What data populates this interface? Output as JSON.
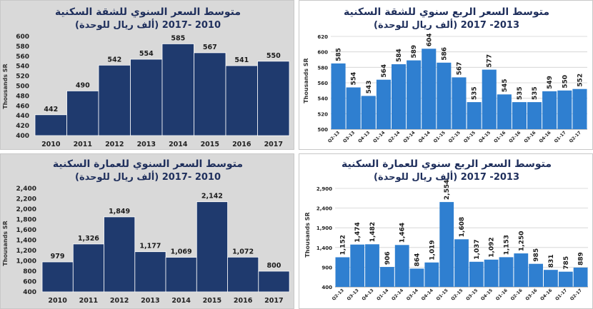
{
  "chart_data": [
    {
      "id": "annual-apartment",
      "type": "bar",
      "title": "متوسط السعر السنوي للشقة السكنية",
      "subtitle": "(ألف ريال للوحدة)  2010 -2017",
      "ylabel": "Thousands SR",
      "categories": [
        "2010",
        "2011",
        "2012",
        "2013",
        "2014",
        "2015",
        "2016",
        "2017"
      ],
      "values": [
        442,
        490,
        542,
        554,
        585,
        567,
        541,
        550
      ],
      "value_labels": [
        "442",
        "490",
        "542",
        "554",
        "585",
        "567",
        "541",
        "550"
      ],
      "yticks": [
        "400",
        "420",
        "440",
        "460",
        "480",
        "500",
        "520",
        "540",
        "560",
        "580",
        "600"
      ],
      "ylim": [
        400,
        600
      ],
      "grid": false,
      "bar_color": "#1f3a6e"
    },
    {
      "id": "quarterly-apartment",
      "type": "bar",
      "title": "متوسط السعر الربع سنوي للشقة السكنية",
      "subtitle": "(ألف ريال للوحدة) 2013- 2017",
      "ylabel": "Thousands SR",
      "categories": [
        "Q2-13",
        "Q3-13",
        "Q4-13",
        "Q1-14",
        "Q2-14",
        "Q3-14",
        "Q4-14",
        "Q1-15",
        "Q2-15",
        "Q3-15",
        "Q4-15",
        "Q1-16",
        "Q2-16",
        "Q3-16",
        "Q4-16",
        "Q1-17",
        "Q2-17"
      ],
      "values": [
        585,
        554,
        543,
        564,
        584,
        589,
        604,
        586,
        567,
        535,
        577,
        545,
        535,
        535,
        549,
        550,
        552
      ],
      "value_labels": [
        "585",
        "554",
        "543",
        "564",
        "584",
        "589",
        "604",
        "586",
        "567",
        "535",
        "577",
        "545",
        "535",
        "535",
        "549",
        "550",
        "552"
      ],
      "yticks": [
        "500",
        "520",
        "540",
        "560",
        "580",
        "600",
        "620"
      ],
      "ylim": [
        500,
        620
      ],
      "grid": true,
      "bar_color": "#2f7fd0"
    },
    {
      "id": "annual-building",
      "type": "bar",
      "title": "متوسط السعر السنوي للعمارة السكنية",
      "subtitle": "(ألف ريال للوحدة)  2010 -2017",
      "ylabel": "Thousands SR",
      "categories": [
        "2010",
        "2011",
        "2012",
        "2013",
        "2014",
        "2015",
        "2016",
        "2017"
      ],
      "values": [
        979,
        1326,
        1849,
        1177,
        1069,
        2142,
        1072,
        800
      ],
      "value_labels": [
        "979",
        "1,326",
        "1,849",
        "1,177",
        "1,069",
        "2,142",
        "1,072",
        "800"
      ],
      "yticks": [
        "400",
        "600",
        "800",
        "1,000",
        "1,200",
        "1,400",
        "1,600",
        "1,800",
        "2,000",
        "2,200",
        "2,400"
      ],
      "ylim": [
        400,
        2400
      ],
      "grid": false,
      "bar_color": "#1f3a6e"
    },
    {
      "id": "quarterly-building",
      "type": "bar",
      "title": "متوسط السعر الربع سنوي للعمارة السكنية",
      "subtitle": "(ألف ريال للوحدة) 2013- 2017",
      "ylabel": "Thousands SR",
      "categories": [
        "Q2-13",
        "Q3-13",
        "Q4-13",
        "Q1-14",
        "Q2-14",
        "Q3-14",
        "Q4-14",
        "Q1-15",
        "Q2-15",
        "Q3-15",
        "Q4-15",
        "Q1-16",
        "Q2-16",
        "Q3-16",
        "Q4-16",
        "Q1-17",
        "Q2-17"
      ],
      "values": [
        1152,
        1474,
        1482,
        906,
        1464,
        864,
        1019,
        2554,
        1608,
        1037,
        1092,
        1153,
        1250,
        985,
        831,
        785,
        889
      ],
      "value_labels": [
        "1,152",
        "1,474",
        "1,482",
        "906",
        "1,464",
        "864",
        "1,019",
        "2,554",
        "1,608",
        "1,037",
        "1,092",
        "1,153",
        "1,250",
        "985",
        "831",
        "785",
        "889"
      ],
      "yticks": [
        "400",
        "900",
        "1,400",
        "1,900",
        "2,400",
        "2,900"
      ],
      "ylim": [
        400,
        2900
      ],
      "grid": true,
      "bar_color": "#2f7fd0"
    }
  ]
}
